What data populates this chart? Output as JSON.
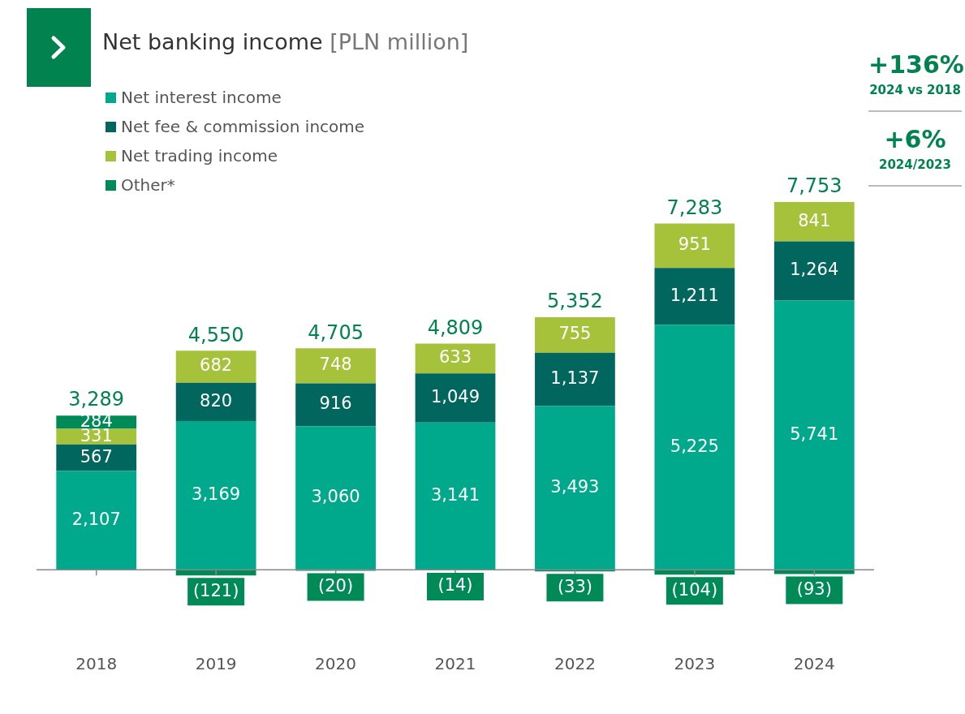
{
  "chart_data": {
    "type": "bar",
    "title": "Net banking income",
    "subtitle": "[PLN million]",
    "categories": [
      "2018",
      "2019",
      "2020",
      "2021",
      "2022",
      "2023",
      "2024"
    ],
    "stacked": true,
    "legend": "top left",
    "tick_labels": "x",
    "series": [
      {
        "name": "Net interest income",
        "color": "#00a98b",
        "values": [
          2107,
          3169,
          3060,
          3141,
          3493,
          5225,
          5741
        ],
        "value_labels": [
          "2,107",
          "3,169",
          "3,060",
          "3,141",
          "3,493",
          "5,225",
          "5,741"
        ]
      },
      {
        "name": "Net fee & commission income",
        "color": "#00665e",
        "values": [
          567,
          820,
          916,
          1049,
          1137,
          1211,
          1264
        ],
        "value_labels": [
          "567",
          "820",
          "916",
          "1,049",
          "1,137",
          "1,211",
          "1,264"
        ]
      },
      {
        "name": "Net trading income",
        "color": "#a6c23a",
        "values": [
          331,
          682,
          748,
          633,
          755,
          951,
          841
        ],
        "value_labels": [
          "331",
          "682",
          "748",
          "633",
          "755",
          "951",
          "841"
        ]
      },
      {
        "name": "Other*",
        "color": "#008a57",
        "values": [
          284,
          -121,
          -20,
          -14,
          -33,
          -104,
          -93
        ],
        "value_labels": [
          "284",
          "(121)",
          "(20)",
          "(14)",
          "(33)",
          "(104)",
          "(93)"
        ]
      }
    ],
    "totals": [
      "3,289",
      "4,550",
      "4,705",
      "4,809",
      "5,352",
      "7,283",
      "7,753"
    ],
    "annotations": [
      "+136%",
      "2024 vs 2018",
      "+6%",
      "2024/2023"
    ]
  }
}
